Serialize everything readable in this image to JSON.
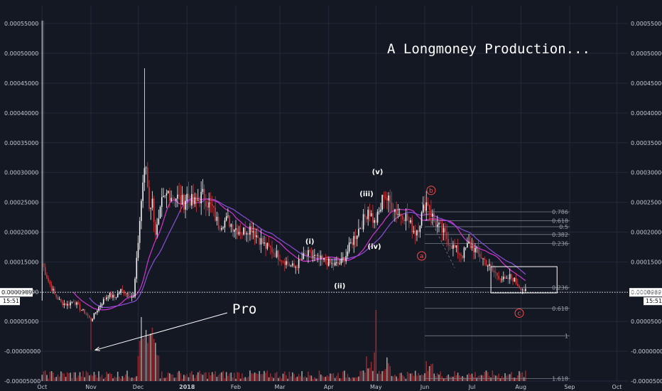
{
  "chart_data": {
    "type": "candlestick",
    "price_scale_labels": [
      "0.00055000",
      "0.00050000",
      "0.00045000",
      "0.00040000",
      "0.00035000",
      "0.00030000",
      "0.00025000",
      "0.00020000",
      "0.00015000",
      "0.00010000",
      "0.00005000",
      "-0.00000000",
      "-0.00005000"
    ],
    "price_scale_values": [
      0.00055,
      0.0005,
      0.00045,
      0.0004,
      0.00035,
      0.0003,
      0.00025,
      0.0002,
      0.00015,
      0.0001,
      5e-05,
      0.0,
      -5e-05
    ],
    "ylim": [
      -5e-05,
      0.00058
    ],
    "x_tick_labels": [
      "Oct",
      "Nov",
      "Dec",
      "2018",
      "Feb",
      "Mar",
      "Apr",
      "May",
      "Jun",
      "Jul",
      "Aug",
      "Sep",
      "Oct"
    ],
    "x_tick_days": [
      0,
      31,
      61,
      92,
      123,
      151,
      182,
      212,
      243,
      273,
      304,
      335,
      365
    ],
    "x_tick_bold": [
      false,
      false,
      false,
      true,
      false,
      false,
      false,
      false,
      false,
      false,
      false,
      false,
      false
    ],
    "xlim_days": [
      -6,
      372
    ],
    "current_price": {
      "label": "0.00009891",
      "value": 9.891e-05,
      "countdown": "15:51"
    },
    "price_path": [
      [
        0,
        0.000148
      ],
      [
        4,
        0.000118
      ],
      [
        8,
        9.5e-05
      ],
      [
        12,
        8.2e-05
      ],
      [
        16,
        7.8e-05
      ],
      [
        20,
        8.5e-05
      ],
      [
        24,
        7.2e-05
      ],
      [
        28,
        6.3e-05
      ],
      [
        31,
        5.2e-05
      ],
      [
        35,
        7e-05
      ],
      [
        38,
        8.2e-05
      ],
      [
        42,
        9.5e-05
      ],
      [
        46,
        9e-05
      ],
      [
        50,
        0.000102
      ],
      [
        54,
        9.8e-05
      ],
      [
        58,
        9e-05
      ],
      [
        60,
        0.00015
      ],
      [
        62,
        0.00022
      ],
      [
        64,
        0.000285
      ],
      [
        66,
        0.00031
      ],
      [
        68,
        0.000245
      ],
      [
        70,
        0.00025
      ],
      [
        72,
        0.0002
      ],
      [
        74,
        0.000215
      ],
      [
        76,
        0.000248
      ],
      [
        78,
        0.000255
      ],
      [
        80,
        0.000268
      ],
      [
        82,
        0.000262
      ],
      [
        84,
        0.00026
      ],
      [
        86,
        0.000258
      ],
      [
        88,
        0.000252
      ],
      [
        90,
        0.00025
      ],
      [
        92,
        0.000262
      ],
      [
        94,
        0.000255
      ],
      [
        96,
        0.000248
      ],
      [
        98,
        0.00025
      ],
      [
        100,
        0.000258
      ],
      [
        102,
        0.000262
      ],
      [
        104,
        0.000255
      ],
      [
        106,
        0.000245
      ],
      [
        108,
        0.00024
      ],
      [
        110,
        0.000225
      ],
      [
        112,
        0.000212
      ],
      [
        115,
        0.000218
      ],
      [
        118,
        0.00022
      ],
      [
        121,
        0.00021
      ],
      [
        124,
        0.000205
      ],
      [
        127,
        0.0002
      ],
      [
        130,
        0.000205
      ],
      [
        133,
        0.000208
      ],
      [
        136,
        0.000195
      ],
      [
        139,
        0.000185
      ],
      [
        142,
        0.000175
      ],
      [
        145,
        0.000172
      ],
      [
        148,
        0.000165
      ],
      [
        151,
        0.000158
      ],
      [
        154,
        0.000152
      ],
      [
        157,
        0.000145
      ],
      [
        160,
        0.00014
      ],
      [
        163,
        0.000148
      ],
      [
        166,
        0.000158
      ],
      [
        169,
        0.000162
      ],
      [
        172,
        0.00016
      ],
      [
        175,
        0.000155
      ],
      [
        178,
        0.000152
      ],
      [
        181,
        0.00015
      ],
      [
        184,
        0.000146
      ],
      [
        187,
        0.000145
      ],
      [
        190,
        0.00015
      ],
      [
        193,
        0.000162
      ],
      [
        196,
        0.00018
      ],
      [
        199,
        0.000195
      ],
      [
        202,
        0.00021
      ],
      [
        205,
        0.000225
      ],
      [
        207,
        0.00024
      ],
      [
        209,
        0.000228
      ],
      [
        211,
        0.000215
      ],
      [
        213,
        0.000225
      ],
      [
        215,
        0.00024
      ],
      [
        217,
        0.000268
      ],
      [
        219,
        0.000255
      ],
      [
        221,
        0.000248
      ],
      [
        223,
        0.000242
      ],
      [
        225,
        0.000235
      ],
      [
        227,
        0.00023
      ],
      [
        229,
        0.000232
      ],
      [
        231,
        0.000225
      ],
      [
        233,
        0.000215
      ],
      [
        235,
        0.000208
      ],
      [
        237,
        0.0002
      ],
      [
        239,
        0.00021
      ],
      [
        241,
        0.000228
      ],
      [
        243,
        0.000248
      ],
      [
        245,
        0.00025
      ],
      [
        247,
        0.000232
      ],
      [
        249,
        0.00022
      ],
      [
        251,
        0.00021
      ],
      [
        253,
        0.000205
      ],
      [
        255,
        0.000198
      ],
      [
        257,
        0.00019
      ],
      [
        259,
        0.000182
      ],
      [
        261,
        0.000175
      ],
      [
        263,
        0.00017
      ],
      [
        265,
        0.000165
      ],
      [
        267,
        0.000162
      ],
      [
        269,
        0.000172
      ],
      [
        271,
        0.00018
      ],
      [
        273,
        0.000175
      ],
      [
        275,
        0.00017
      ],
      [
        277,
        0.000162
      ],
      [
        279,
        0.000158
      ],
      [
        281,
        0.000152
      ],
      [
        283,
        0.000145
      ],
      [
        285,
        0.000138
      ],
      [
        287,
        0.000132
      ],
      [
        289,
        0.000128
      ],
      [
        291,
        0.000125
      ],
      [
        293,
        0.00012
      ],
      [
        295,
        0.000118
      ],
      [
        297,
        0.000125
      ],
      [
        299,
        0.000122
      ],
      [
        301,
        0.000115
      ],
      [
        303,
        0.00011
      ],
      [
        305,
        0.000105
      ],
      [
        307,
        0.0001
      ]
    ],
    "wave_labels": [
      {
        "text": "(i)",
        "day": 170,
        "value": 0.00018
      },
      {
        "text": "(ii)",
        "day": 189,
        "value": 0.000106
      },
      {
        "text": "(iii)",
        "day": 206,
        "value": 0.00026
      },
      {
        "text": "(iv)",
        "day": 211,
        "value": 0.000172
      },
      {
        "text": "(v)",
        "day": 213,
        "value": 0.000297
      }
    ],
    "wave_labels_circled": [
      {
        "text": "b",
        "day": 247,
        "value": 0.00027
      },
      {
        "text": "a",
        "day": 241,
        "value": 0.00016
      },
      {
        "text": "c",
        "day": 303,
        "value": 6.4e-05
      }
    ],
    "fib_levels": [
      {
        "label": "0.786",
        "value": 0.000234
      },
      {
        "label": "0.618",
        "value": 0.000219
      },
      {
        "label": "0.5",
        "value": 0.000209
      },
      {
        "label": "0.382",
        "value": 0.000196
      },
      {
        "label": "0.236",
        "value": 0.000181
      },
      {
        "label": "0.236",
        "value": 0.000107
      },
      {
        "label": "0.618",
        "value": 7.2e-05
      },
      {
        "label": "1",
        "value": 2.6e-05
      },
      {
        "label": "1.618",
        "value": -4.6e-05
      }
    ],
    "fib_range_days": [
      243,
      335
    ],
    "annotations": {
      "title": "A Longmoney Production...",
      "pointer_text": "Pro"
    },
    "colors": {
      "background": "#141823",
      "up": "#f2f2f2",
      "down": "#d0383c",
      "ma_magenta": "#d534d4",
      "ma_purple": "#8a4fd8",
      "grid": "#232938",
      "fib": "#777d88",
      "current_line": "#ffffff"
    }
  }
}
